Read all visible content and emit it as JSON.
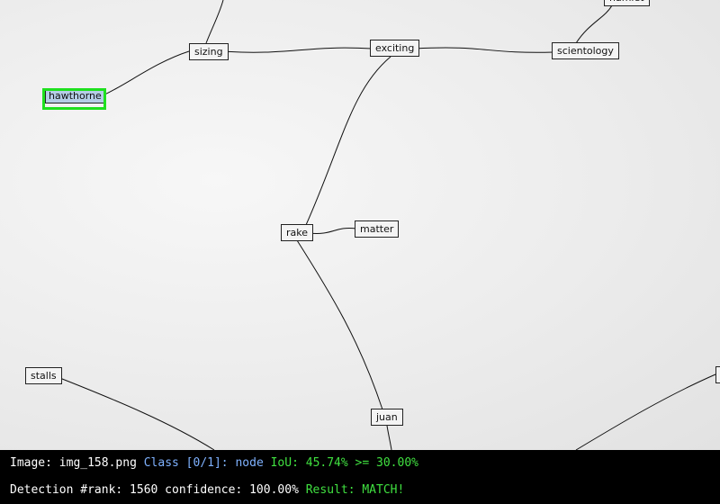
{
  "diagram": {
    "nodes": [
      {
        "id": "hamlet",
        "label": "hamlet"
      },
      {
        "id": "sizing",
        "label": "sizing"
      },
      {
        "id": "exciting",
        "label": "exciting"
      },
      {
        "id": "scientology",
        "label": "scientology"
      },
      {
        "id": "hawthorne",
        "label": "hawthorne"
      },
      {
        "id": "rake",
        "label": "rake"
      },
      {
        "id": "matter",
        "label": "matter"
      },
      {
        "id": "stalls",
        "label": "stalls"
      },
      {
        "id": "juan",
        "label": "juan"
      },
      {
        "id": "edge-right",
        "label": ""
      }
    ],
    "edges": [
      [
        "sizing",
        "top-offscreen"
      ],
      [
        "sizing",
        "exciting"
      ],
      [
        "sizing",
        "hawthorne"
      ],
      [
        "exciting",
        "scientology"
      ],
      [
        "scientology",
        "hamlet"
      ],
      [
        "exciting",
        "rake"
      ],
      [
        "rake",
        "matter"
      ],
      [
        "rake",
        "juan"
      ],
      [
        "juan",
        "bottom-offscreen"
      ],
      [
        "stalls",
        "bottom-offscreen"
      ],
      [
        "edge-right",
        "bottom-offscreen"
      ]
    ],
    "highlighted_node": "hawthorne",
    "detection_color": "#1fe01f"
  },
  "status": {
    "image_label": "Image:",
    "image_name": "img_158.png",
    "class_text": "Class [0/1]: node",
    "iou_text": "IoU: 45.74% >= 30.00%",
    "detection_text": "Detection #rank: 1560 confidence: 100.00%",
    "result_text": "Result: MATCH!"
  }
}
